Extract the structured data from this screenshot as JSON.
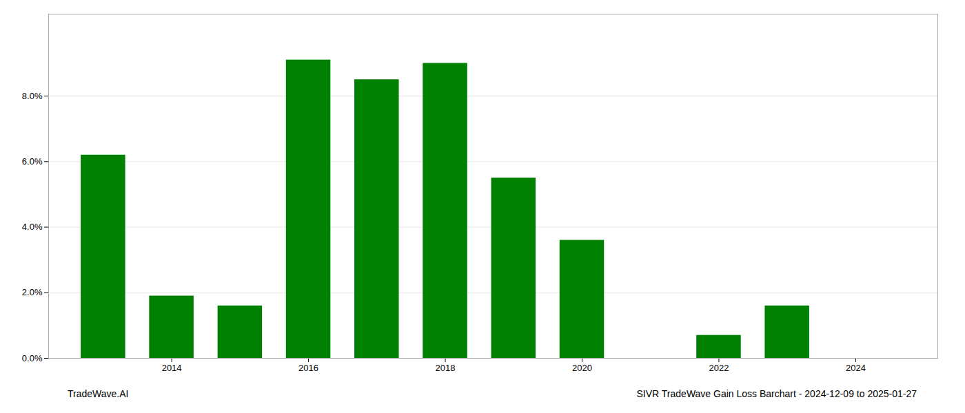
{
  "chart_data": {
    "type": "bar",
    "x": [
      2013,
      2014,
      2015,
      2016,
      2017,
      2018,
      2019,
      2020,
      2021,
      2022,
      2023,
      2024
    ],
    "values": [
      0.062,
      0.019,
      0.016,
      0.091,
      0.085,
      0.09,
      0.055,
      0.036,
      0.0,
      0.007,
      0.016,
      0.0
    ],
    "color": "#008000",
    "xlim": [
      2012.2,
      2025.2
    ],
    "xticks": [
      2014,
      2016,
      2018,
      2020,
      2022,
      2024
    ],
    "ylim": [
      0.0,
      0.105
    ],
    "yticks": [
      {
        "value": 0.0,
        "label": "0.0%"
      },
      {
        "value": 0.02,
        "label": "2.0%"
      },
      {
        "value": 0.04,
        "label": "4.0%"
      },
      {
        "value": 0.06,
        "label": "6.0%"
      },
      {
        "value": 0.08,
        "label": "8.0%"
      }
    ],
    "grid": true,
    "annotations": [
      "TradeWave.AI",
      "SIVR TradeWave Gain Loss Barchart - 2024-12-09 to 2025-01-27"
    ]
  }
}
